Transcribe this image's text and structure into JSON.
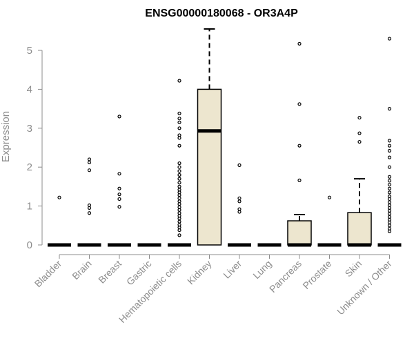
{
  "chart_data": {
    "type": "box",
    "title": "ENSG00000180068 - OR3A4P",
    "ylabel": "Expression",
    "xlabel": "",
    "ylim": [
      0,
      5.55
    ],
    "yticks": [
      "0",
      "1",
      "2",
      "3",
      "4",
      "5"
    ],
    "box_fill": "#ede6cf",
    "categories": [
      "Bladder",
      "Brain",
      "Breast",
      "Gastric",
      "Hematopoietic cells",
      "Kidney",
      "Liver",
      "Lung",
      "Pancreas",
      "Prostate",
      "Skin",
      "Unknown / Other"
    ],
    "boxes": [
      {
        "q1": 0,
        "median": 0,
        "q3": 0,
        "whisker_low": 0,
        "whisker_high": 0,
        "outliers": [
          1.22
        ]
      },
      {
        "q1": 0,
        "median": 0,
        "q3": 0,
        "whisker_low": 0,
        "whisker_high": 0,
        "outliers": [
          0.82,
          0.95,
          1.02,
          1.92,
          2.12,
          2.2
        ]
      },
      {
        "q1": 0,
        "median": 0,
        "q3": 0,
        "whisker_low": 0,
        "whisker_high": 0,
        "outliers": [
          0.98,
          1.18,
          1.3,
          1.45,
          1.83,
          3.3
        ]
      },
      {
        "q1": 0,
        "median": 0,
        "q3": 0,
        "whisker_low": 0,
        "whisker_high": 0,
        "outliers": []
      },
      {
        "q1": 0,
        "median": 0,
        "q3": 0,
        "whisker_low": 0,
        "whisker_high": 0,
        "outliers": [
          0.25,
          0.38,
          0.45,
          0.52,
          0.6,
          0.68,
          0.75,
          0.82,
          0.9,
          0.97,
          1.05,
          1.12,
          1.2,
          1.28,
          1.35,
          1.42,
          1.5,
          1.6,
          1.7,
          1.8,
          1.9,
          2.0,
          2.1,
          2.55,
          2.75,
          2.82,
          3.0,
          3.15,
          3.25,
          3.38,
          4.22
        ]
      },
      {
        "q1": 0,
        "median": 2.93,
        "q3": 4.0,
        "whisker_low": 0,
        "whisker_high": 5.55,
        "outliers": []
      },
      {
        "q1": 0,
        "median": 0,
        "q3": 0,
        "whisker_low": 0,
        "whisker_high": 0,
        "outliers": [
          0.85,
          0.92,
          1.12,
          1.2,
          2.05
        ]
      },
      {
        "q1": 0,
        "median": 0,
        "q3": 0,
        "whisker_low": 0,
        "whisker_high": 0,
        "outliers": []
      },
      {
        "q1": 0,
        "median": 0,
        "q3": 0.62,
        "whisker_low": 0,
        "whisker_high": 0.78,
        "outliers": [
          1.66,
          2.55,
          3.62,
          5.17
        ]
      },
      {
        "q1": 0,
        "median": 0,
        "q3": 0,
        "whisker_low": 0,
        "whisker_high": 0,
        "outliers": [
          1.22
        ]
      },
      {
        "q1": 0,
        "median": 0,
        "q3": 0.83,
        "whisker_low": 0,
        "whisker_high": 1.7,
        "outliers": [
          2.65,
          2.87,
          3.27
        ]
      },
      {
        "q1": 0,
        "median": 0,
        "q3": 0,
        "whisker_low": 0,
        "whisker_high": 0,
        "outliers": [
          0.35,
          0.42,
          0.5,
          0.58,
          0.65,
          0.72,
          0.8,
          0.88,
          0.95,
          1.02,
          1.1,
          1.18,
          1.25,
          1.35,
          1.45,
          1.55,
          1.65,
          1.75,
          2.0,
          2.25,
          2.42,
          2.55,
          2.68,
          3.5,
          5.3
        ]
      }
    ]
  }
}
